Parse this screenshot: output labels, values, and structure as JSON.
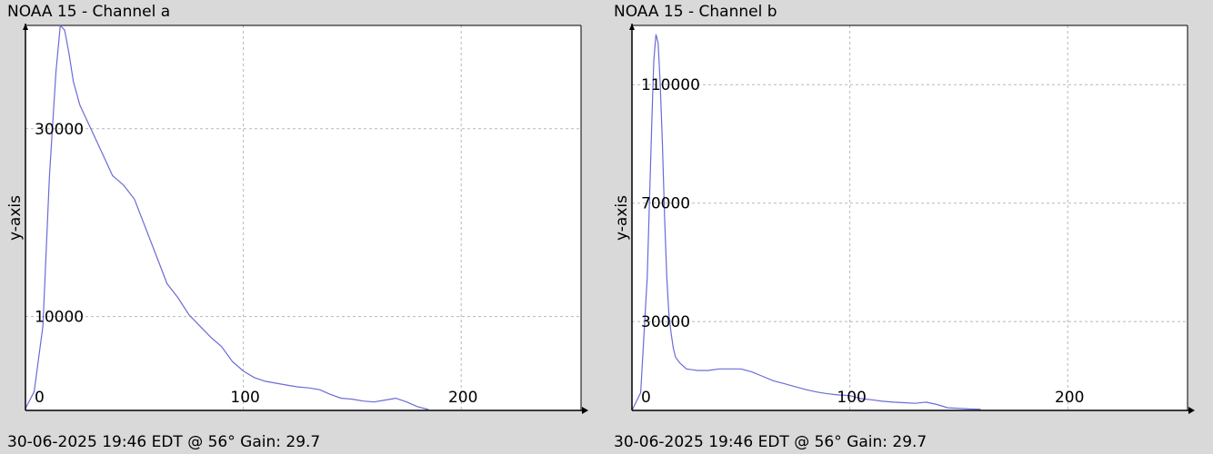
{
  "chart_data": [
    {
      "type": "line",
      "title": "NOAA 15 - Channel a",
      "footer": "30-06-2025 19:46 EDT @ 56° Gain: 29.7",
      "ylabel": "y-axis",
      "xlabel": "",
      "xlim": [
        0,
        255
      ],
      "ylim": [
        0,
        41000
      ],
      "grid": true,
      "x_ticks": [
        0,
        100,
        200
      ],
      "y_ticks": [
        10000,
        30000
      ],
      "line_color": "#6b6bd6",
      "series": [
        {
          "x": [
            0,
            4,
            8,
            11,
            14,
            16,
            18,
            20,
            22,
            25,
            28,
            31,
            35,
            40,
            45,
            50,
            55,
            60,
            65,
            70,
            75,
            80,
            85,
            90,
            95,
            100,
            105,
            110,
            115,
            120,
            125,
            130,
            135,
            140,
            145,
            150,
            155,
            160,
            165,
            170,
            175,
            180,
            185
          ],
          "y": [
            200,
            2000,
            9000,
            25000,
            36000,
            41000,
            40500,
            38000,
            35000,
            32500,
            31000,
            29500,
            27500,
            25000,
            24000,
            22500,
            19500,
            16500,
            13500,
            12000,
            10200,
            9000,
            7800,
            6800,
            5200,
            4200,
            3500,
            3100,
            2900,
            2700,
            2500,
            2400,
            2200,
            1700,
            1300,
            1200,
            1000,
            900,
            1100,
            1300,
            900,
            400,
            100
          ]
        }
      ]
    },
    {
      "type": "line",
      "title": "NOAA 15 - Channel b",
      "footer": "30-06-2025 19:46 EDT @ 56° Gain: 29.7",
      "ylabel": "y-axis",
      "xlabel": "",
      "xlim": [
        0,
        255
      ],
      "ylim": [
        0,
        130000
      ],
      "grid": true,
      "x_ticks": [
        0,
        100,
        200
      ],
      "y_ticks": [
        30000,
        70000,
        110000
      ],
      "line_color": "#6b6bd6",
      "series": [
        {
          "x": [
            0,
            4,
            7,
            9,
            10,
            11,
            12,
            13,
            14,
            15,
            16,
            17,
            18,
            19,
            20,
            22,
            25,
            30,
            35,
            40,
            45,
            50,
            55,
            60,
            65,
            70,
            75,
            80,
            85,
            90,
            95,
            100,
            105,
            110,
            115,
            120,
            125,
            130,
            135,
            140,
            145,
            150,
            155,
            160
          ],
          "y": [
            0,
            6000,
            45000,
            95000,
            118000,
            127000,
            124000,
            110000,
            90000,
            65000,
            45000,
            32000,
            26000,
            21000,
            18000,
            16000,
            14000,
            13500,
            13500,
            14000,
            14000,
            14000,
            13000,
            11500,
            10000,
            9000,
            8000,
            7000,
            6200,
            5600,
            5200,
            5000,
            4000,
            3600,
            3100,
            2800,
            2600,
            2400,
            2800,
            2000,
            900,
            700,
            500,
            400
          ]
        }
      ]
    }
  ]
}
